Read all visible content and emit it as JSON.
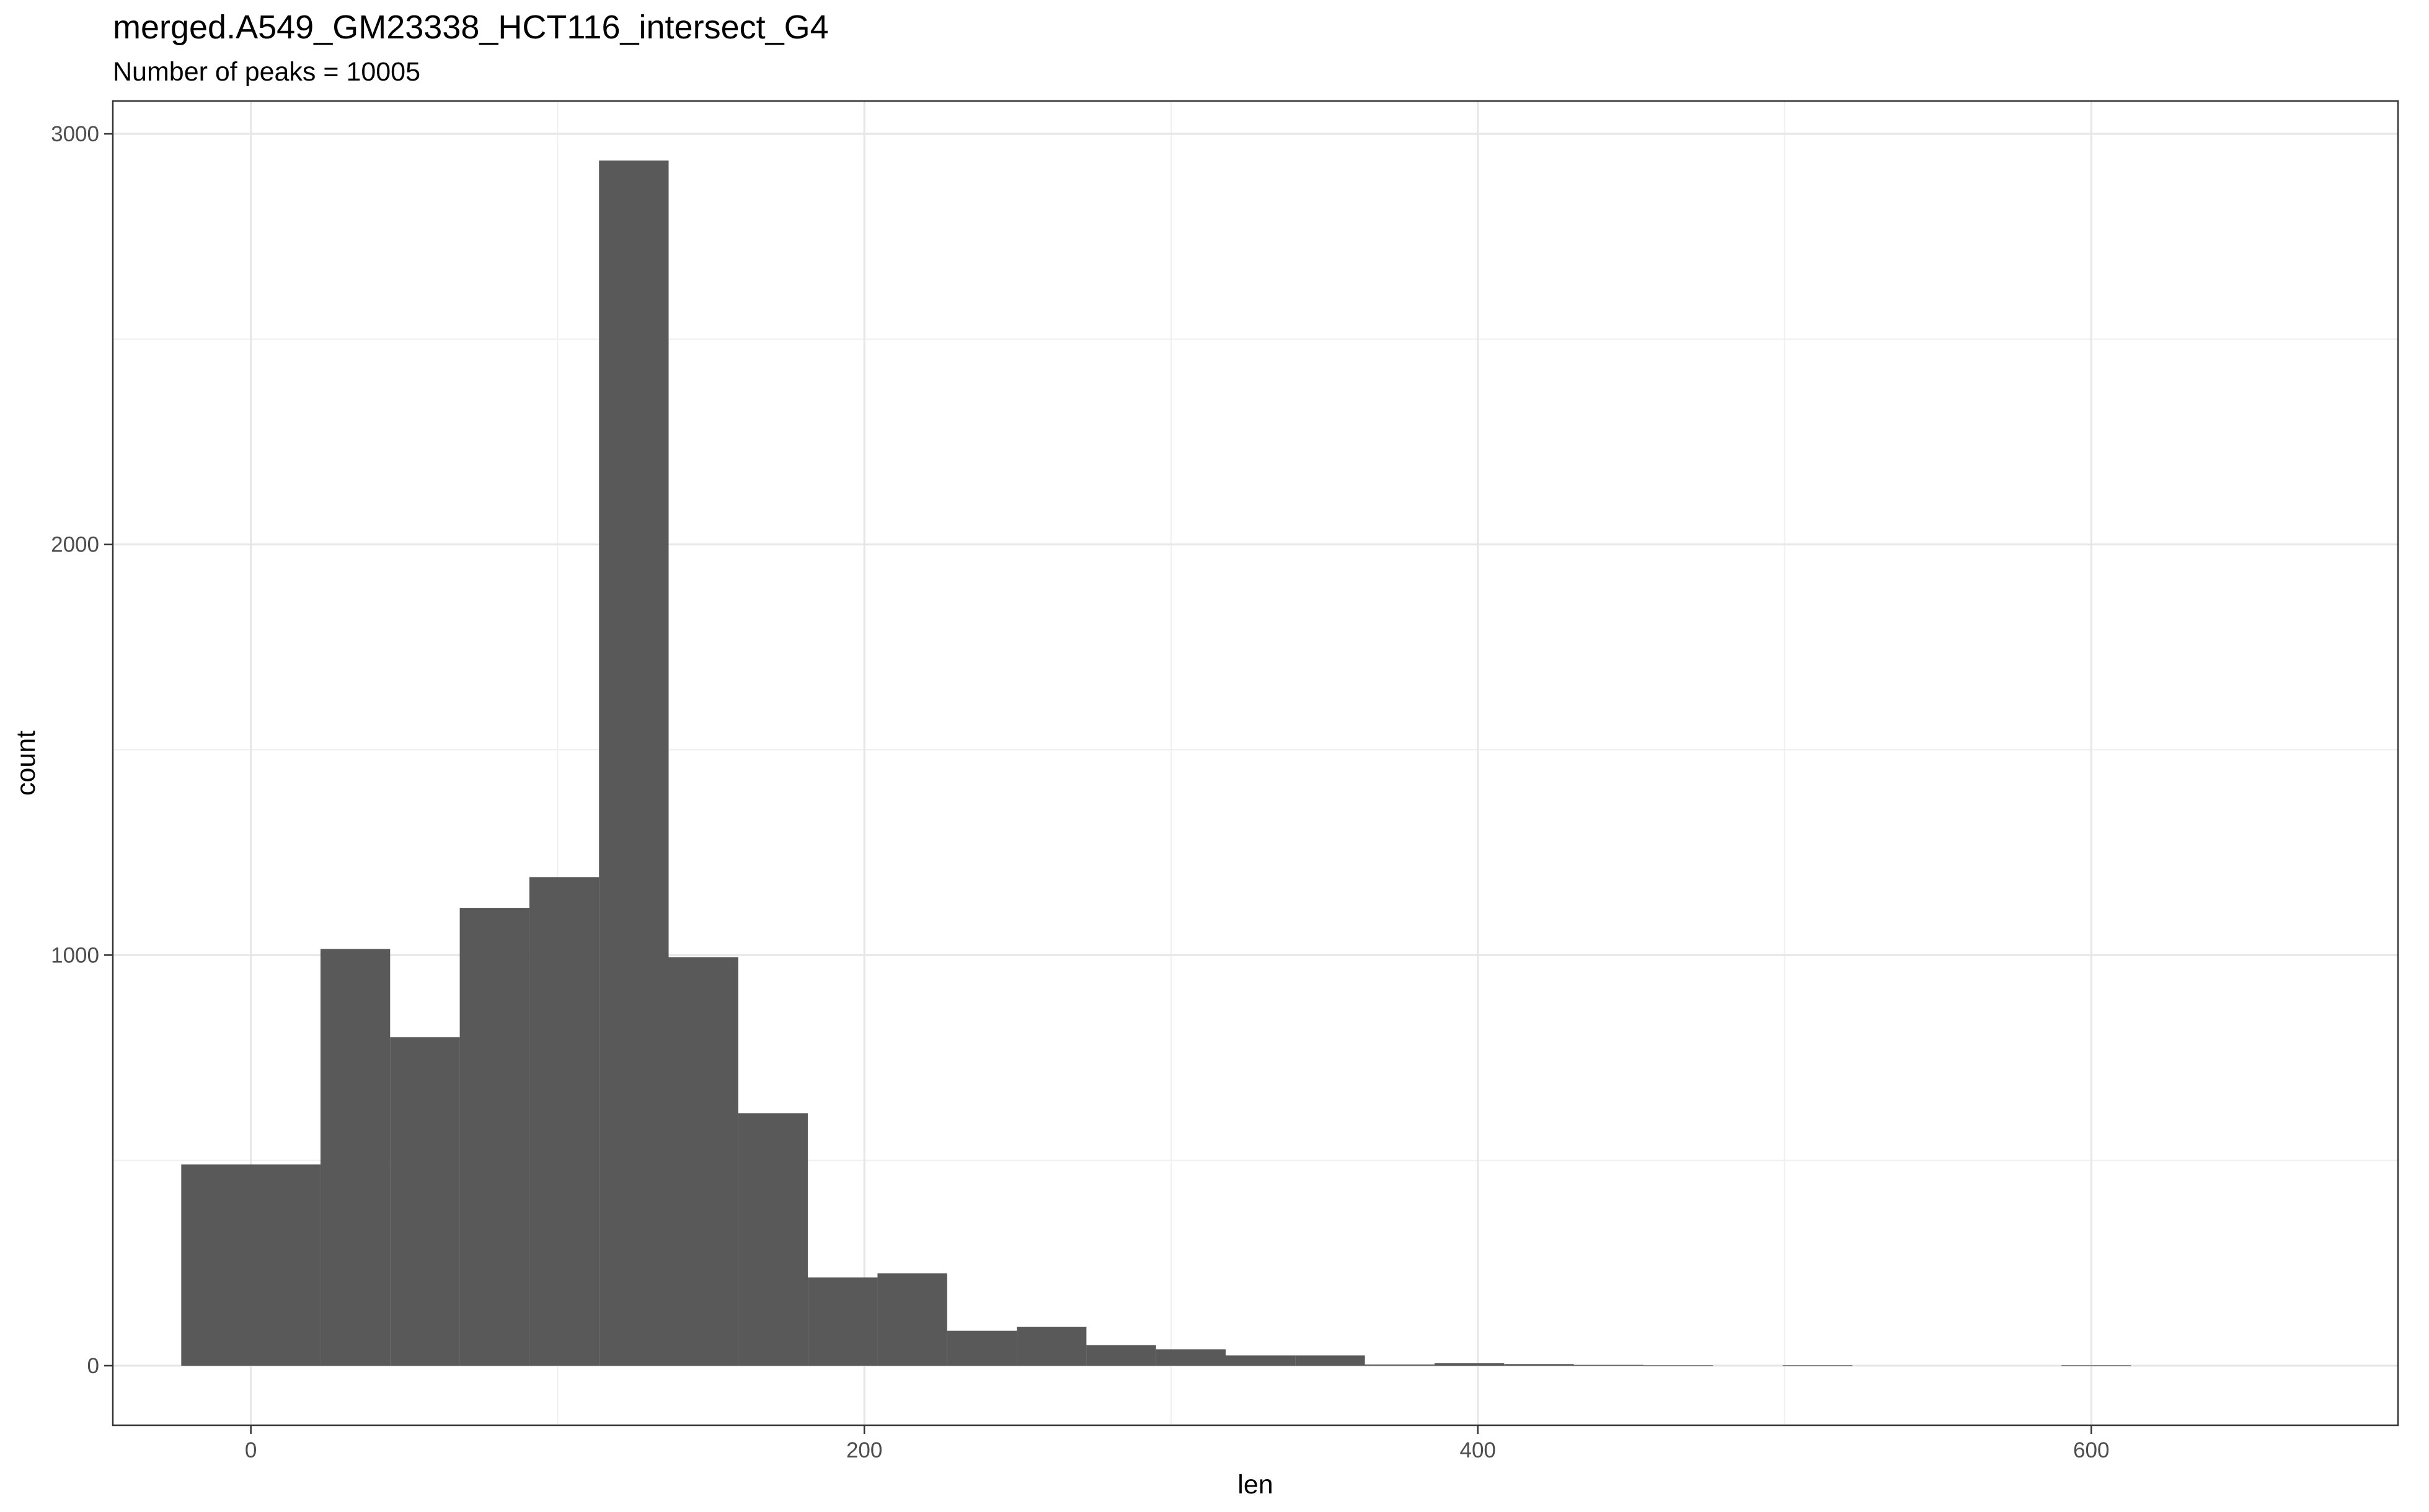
{
  "chart_data": {
    "type": "bar",
    "title": "merged.A549_GM23338_HCT116_intersect_G4",
    "subtitle": "Number of peaks = 10005",
    "xlabel": "len",
    "ylabel": "count",
    "xlim": [
      -45,
      700
    ],
    "ylim": [
      -145,
      3080
    ],
    "x_ticks": [
      0,
      200,
      400,
      600
    ],
    "y_ticks": [
      0,
      1000,
      2000,
      3000
    ],
    "x_minor_ticks": [
      100,
      300,
      500
    ],
    "y_minor_ticks": [
      500,
      1500,
      2500
    ],
    "grid": true,
    "bar_color": "#595959",
    "bins": [
      {
        "x_start": -22.7,
        "x_end": 0,
        "count": 0
      },
      {
        "x_start": -22.7,
        "x_end": 22.7,
        "count": 490
      },
      {
        "x_start": 22.7,
        "x_end": 45.4,
        "count": 1015
      },
      {
        "x_start": 45.4,
        "x_end": 68.1,
        "count": 800
      },
      {
        "x_start": 68.1,
        "x_end": 90.8,
        "count": 1115
      },
      {
        "x_start": 90.8,
        "x_end": 113.5,
        "count": 1190
      },
      {
        "x_start": 113.5,
        "x_end": 136.2,
        "count": 2935
      },
      {
        "x_start": 136.2,
        "x_end": 158.9,
        "count": 995
      },
      {
        "x_start": 158.9,
        "x_end": 181.6,
        "count": 615
      },
      {
        "x_start": 181.6,
        "x_end": 204.3,
        "count": 215
      },
      {
        "x_start": 204.3,
        "x_end": 227.0,
        "count": 225
      },
      {
        "x_start": 227.0,
        "x_end": 249.7,
        "count": 85
      },
      {
        "x_start": 249.7,
        "x_end": 272.4,
        "count": 95
      },
      {
        "x_start": 272.4,
        "x_end": 295.1,
        "count": 50
      },
      {
        "x_start": 295.1,
        "x_end": 317.8,
        "count": 40
      },
      {
        "x_start": 317.8,
        "x_end": 340.5,
        "count": 25
      },
      {
        "x_start": 340.5,
        "x_end": 363.2,
        "count": 25
      },
      {
        "x_start": 363.2,
        "x_end": 385.9,
        "count": 3
      },
      {
        "x_start": 385.9,
        "x_end": 408.6,
        "count": 6
      },
      {
        "x_start": 408.6,
        "x_end": 431.3,
        "count": 4
      },
      {
        "x_start": 431.3,
        "x_end": 454.0,
        "count": 2
      },
      {
        "x_start": 454.0,
        "x_end": 476.7,
        "count": 1
      },
      {
        "x_start": 499.4,
        "x_end": 522.1,
        "count": 1
      },
      {
        "x_start": 590.2,
        "x_end": 612.9,
        "count": 1
      }
    ]
  }
}
